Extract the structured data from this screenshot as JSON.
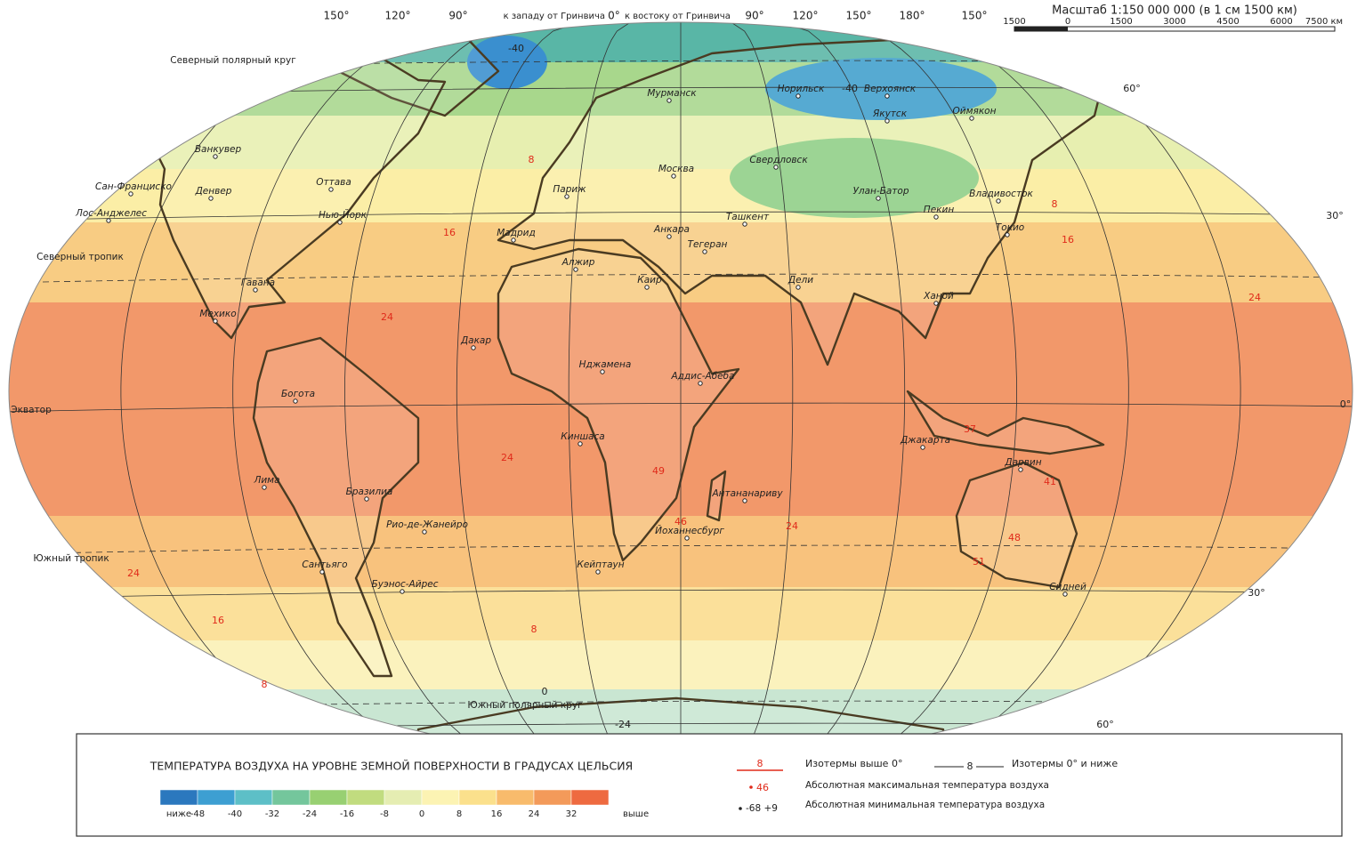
{
  "scale": {
    "title": "Масштаб 1:150 000 000 (в 1 см 1500 км)",
    "ticks": [
      "1500",
      "0",
      "1500",
      "3000",
      "4500",
      "6000",
      "7500 км"
    ]
  },
  "graticule": {
    "longitudes": [
      "150°",
      "120°",
      "90°",
      "к западу от Гринвича",
      "0°",
      "к востоку от Гринвича",
      "90°",
      "120°",
      "150°",
      "180°",
      "150°"
    ],
    "latitudes": [
      "60°",
      "30°",
      "0°",
      "30°",
      "60°"
    ],
    "lines": [
      "Северный полярный круг",
      "Северный тропик",
      "Экватор",
      "Южный тропик",
      "Южный полярный круг"
    ]
  },
  "cities": [
    "Норильск",
    "Верхоянск",
    "Якутск",
    "Оймякон",
    "Мурманск",
    "Москва",
    "Свердловск",
    "Улан-Батор",
    "Пекин",
    "Владивосток",
    "Токио",
    "Ташкент",
    "Тегеран",
    "Анкара",
    "Париж",
    "Мадрид",
    "Алжир",
    "Каир",
    "Дели",
    "Ханой",
    "Дакар",
    "Нджамена",
    "Аддис-Абеба",
    "Киншаса",
    "Джакарта",
    "Дарвин",
    "Антананариву",
    "Йоханнесбург",
    "Кейптаун",
    "Сидней",
    "Ванкувер",
    "Сан-Франциско",
    "Лос-Анджелес",
    "Денвер",
    "Оттава",
    "Нью-Йорк",
    "Гавана",
    "Мехико",
    "Богота",
    "Лима",
    "Бразилиа",
    "Рио-де-Жанейро",
    "Сантьяго",
    "Буэнос-Айрес"
  ],
  "isotherms": {
    "warm": [
      8,
      16,
      24,
      24,
      24,
      16,
      8,
      24,
      16,
      8,
      8,
      24,
      37,
      41,
      48,
      51,
      49,
      46
    ],
    "cold": [
      -40,
      -40,
      0,
      -24
    ]
  },
  "legend": {
    "title": "ТЕМПЕРАТУРА ВОЗДУХА НА УРОВНЕ ЗЕМНОЙ ПОВЕРХНОСТИ В ГРАДУСАХ ЦЕЛЬСИЯ",
    "scale_labels": [
      "ниже",
      -48,
      -40,
      -32,
      -24,
      -16,
      -8,
      0,
      8,
      16,
      24,
      32,
      "выше"
    ],
    "items": [
      {
        "sample": 8,
        "text": "Изотермы выше 0°"
      },
      {
        "sample": 8,
        "text": "Изотермы 0° и ниже"
      },
      {
        "sample": 46,
        "text": "Абсолютная максимальная температура воздуха"
      },
      {
        "sample": "-68 +9",
        "text": "Абсолютная минимальная температура воздуха"
      }
    ]
  }
}
